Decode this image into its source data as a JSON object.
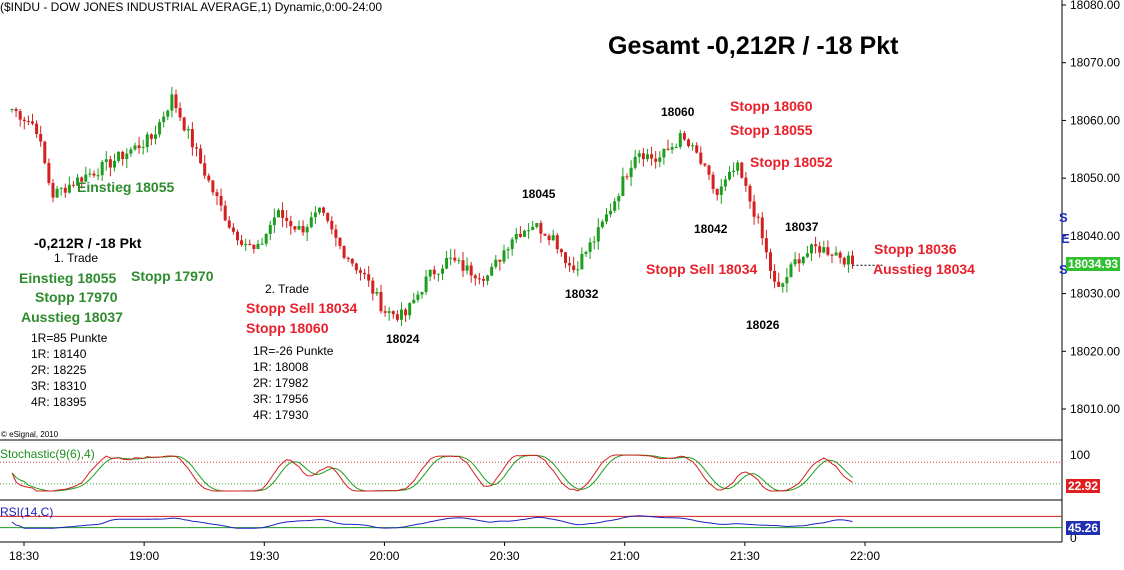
{
  "header": "($INDU - DOW JONES INDUSTRIAL AVERAGE,1) Dynamic,0:00-24:00",
  "copyright": "© eSignal, 2010",
  "colors": {
    "up_candle": "#1e9e1e",
    "down_candle": "#d42020",
    "stoch_k": "#d42020",
    "stoch_d": "#1e9e1e",
    "rsi_line": "#2020c0",
    "price_badge": "#30c030",
    "stoch_badge": "#e02020",
    "rsi_badge": "#2030b0"
  },
  "chart_data": {
    "type": "line",
    "x_ticks": [
      "18:30",
      "19:00",
      "19:30",
      "20:00",
      "20:30",
      "21:00",
      "21:30",
      "22:00"
    ],
    "y_ticks": [
      "18010.00",
      "18020.00",
      "18030.00",
      "18040.00",
      "18050.00",
      "18060.00",
      "18070.00",
      "18080.00"
    ],
    "ylim": [
      18003,
      18080
    ],
    "last_price": "18034.93",
    "series": [
      {
        "time": "18:27",
        "close": 18062
      },
      {
        "time": "18:33",
        "close": 18059
      },
      {
        "time": "18:37",
        "close": 18047
      },
      {
        "time": "18:44",
        "close": 18050
      },
      {
        "time": "18:50",
        "close": 18052
      },
      {
        "time": "18:57",
        "close": 18055
      },
      {
        "time": "19:02",
        "close": 18057
      },
      {
        "time": "19:07",
        "close": 18064
      },
      {
        "time": "19:12",
        "close": 18056
      },
      {
        "time": "19:17",
        "close": 18048
      },
      {
        "time": "19:22",
        "close": 18041
      },
      {
        "time": "19:28",
        "close": 18037
      },
      {
        "time": "19:33",
        "close": 18044
      },
      {
        "time": "19:39",
        "close": 18041
      },
      {
        "time": "19:44",
        "close": 18044
      },
      {
        "time": "19:49",
        "close": 18038
      },
      {
        "time": "19:55",
        "close": 18033
      },
      {
        "time": "20:00",
        "close": 18027
      },
      {
        "time": "20:05",
        "close": 18026
      },
      {
        "time": "20:11",
        "close": 18033
      },
      {
        "time": "20:16",
        "close": 18036
      },
      {
        "time": "20:21",
        "close": 18034
      },
      {
        "time": "20:26",
        "close": 18033
      },
      {
        "time": "20:32",
        "close": 18040
      },
      {
        "time": "20:37",
        "close": 18042
      },
      {
        "time": "20:42",
        "close": 18040
      },
      {
        "time": "20:47",
        "close": 18034
      },
      {
        "time": "20:53",
        "close": 18040
      },
      {
        "time": "20:58",
        "close": 18047
      },
      {
        "time": "21:03",
        "close": 18055
      },
      {
        "time": "21:08",
        "close": 18053
      },
      {
        "time": "21:14",
        "close": 18057
      },
      {
        "time": "21:18",
        "close": 18054
      },
      {
        "time": "21:23",
        "close": 18047
      },
      {
        "time": "21:28",
        "close": 18052
      },
      {
        "time": "21:33",
        "close": 18043
      },
      {
        "time": "21:38",
        "close": 18030
      },
      {
        "time": "21:43",
        "close": 18036
      },
      {
        "time": "21:48",
        "close": 18038
      },
      {
        "time": "21:53",
        "close": 18037
      },
      {
        "time": "21:57",
        "close": 18035
      }
    ],
    "stochastic": {
      "title": "Stochastic(9(6),4)",
      "ticks": [
        "100",
        "0"
      ],
      "last": "22.92"
    },
    "rsi": {
      "title": "RSI(14,C)",
      "last": "45.26"
    }
  },
  "annotations": {
    "total": "Gesamt -0,212R / -18 Pkt",
    "einstieg1_chart": "Einstieg 18055",
    "summary": "-0,212R / -18 Pkt",
    "trade1_title": "1. Trade",
    "trade1_einstieg": "Einstieg 18055",
    "trade1_stopp_right": "Stopp 17970",
    "trade1_stopp": "Stopp 17970",
    "trade1_ausstieg": "Ausstieg 18037",
    "trade1_r": [
      "1R=85 Punkte",
      "1R: 18140",
      "2R: 18225",
      "3R: 18310",
      "4R: 18395"
    ],
    "trade2_title": "2. Trade",
    "trade2_stopp_sell": "Stopp Sell 18034",
    "trade2_stopp": "Stopp 18060",
    "trade2_r": [
      "1R=-26 Punkte",
      "1R: 18008",
      "2R: 17982",
      "3R: 17956",
      "4R: 17930"
    ],
    "p18024": "18024",
    "p18045": "18045",
    "p18032": "18032",
    "p18060": "18060",
    "p18042": "18042",
    "p18026": "18026",
    "p18037": "18037",
    "stopp18060_r": "Stopp 18060",
    "stopp18055_r": "Stopp 18055",
    "stopp18052_r": "Stopp 18052",
    "stopp_sell_18034": "Stopp Sell 18034",
    "stopp18036": "Stopp 18036",
    "ausstieg18034": "Ausstieg 18034",
    "edge_s1": "S",
    "edge_e": "E",
    "edge_s2": "S"
  }
}
